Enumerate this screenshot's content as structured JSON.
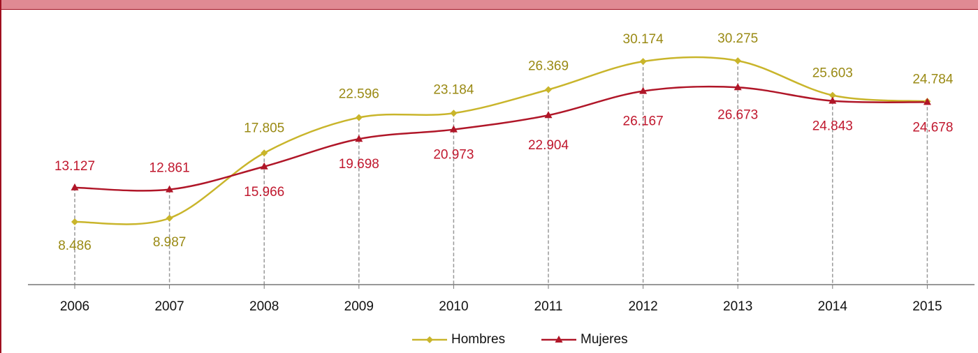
{
  "chart_data": {
    "type": "line",
    "categories": [
      "2006",
      "2007",
      "2008",
      "2009",
      "2010",
      "2011",
      "2012",
      "2013",
      "2014",
      "2015"
    ],
    "series": [
      {
        "name": "Hombres",
        "color": "#c9b52b",
        "label_color": "#9a8a14",
        "marker": "diamond",
        "values": [
          8.486,
          8.987,
          17.805,
          22.596,
          23.184,
          26.369,
          30.174,
          30.275,
          25.603,
          24.784
        ]
      },
      {
        "name": "Mujeres",
        "color": "#b01628",
        "label_color": "#c0182e",
        "marker": "triangle",
        "values": [
          13.127,
          12.861,
          15.966,
          19.698,
          20.973,
          22.904,
          26.167,
          26.673,
          24.843,
          24.678
        ]
      }
    ]
  }
}
